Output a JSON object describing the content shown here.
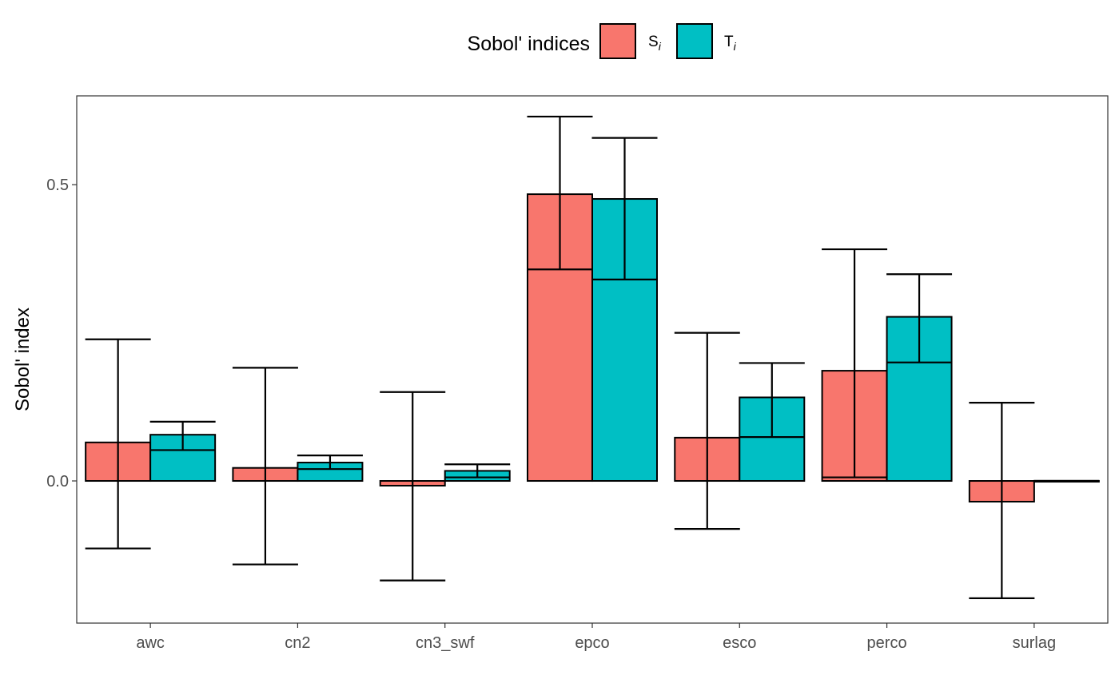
{
  "chart_data": {
    "type": "bar",
    "title": "",
    "xlabel": "",
    "ylabel": "Sobol' index",
    "categories": [
      "awc",
      "cn2",
      "cn3_swf",
      "epco",
      "esco",
      "perco",
      "surlag"
    ],
    "ylim": [
      -0.24,
      0.65
    ],
    "yticks": [
      0.0,
      0.5
    ],
    "ytick_labels": [
      "0.0",
      "0.5"
    ],
    "grid": false,
    "legend": {
      "title": "Sobol' indices",
      "position": "top",
      "entries": [
        {
          "base": "S",
          "sub": "i"
        },
        {
          "base": "T",
          "sub": "i"
        }
      ]
    },
    "series": [
      {
        "key": "Si",
        "color": "#F8766D",
        "values": [
          0.065,
          0.022,
          -0.008,
          0.484,
          0.073,
          0.186,
          -0.035
        ],
        "lower": [
          -0.114,
          -0.141,
          -0.168,
          0.357,
          -0.081,
          0.006,
          -0.198
        ],
        "upper": [
          0.239,
          0.191,
          0.15,
          0.615,
          0.25,
          0.391,
          0.132
        ]
      },
      {
        "key": "Ti",
        "color": "#00BFC4",
        "values": [
          0.078,
          0.031,
          0.017,
          0.476,
          0.141,
          0.277,
          0.0
        ],
        "lower": [
          0.052,
          0.02,
          0.006,
          0.34,
          0.074,
          0.2,
          0.0
        ],
        "upper": [
          0.1,
          0.043,
          0.028,
          0.579,
          0.199,
          0.349,
          0.0
        ]
      }
    ]
  }
}
